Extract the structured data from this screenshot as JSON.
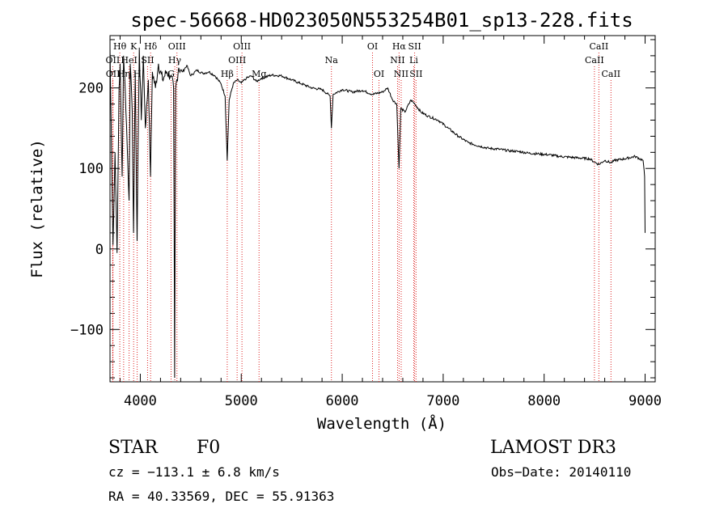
{
  "chart_data": {
    "type": "line",
    "title": "spec-56668-HD023050N553254B01_sp13-228.fits",
    "xlabel": "Wavelength (Å)",
    "ylabel": "Flux (relative)",
    "xlim": [
      3700,
      9100
    ],
    "ylim": [
      -165,
      265
    ],
    "x_ticks": [
      4000,
      5000,
      6000,
      7000,
      8000,
      9000
    ],
    "y_ticks": [
      -100,
      0,
      100,
      200
    ],
    "series": [
      {
        "name": "spectrum",
        "x": [
          3700,
          3730,
          3750,
          3770,
          3790,
          3800,
          3820,
          3835,
          3850,
          3870,
          3889,
          3900,
          3920,
          3933,
          3950,
          3968,
          3990,
          4010,
          4030,
          4050,
          4080,
          4101,
          4120,
          4150,
          4180,
          4220,
          4260,
          4300,
          4330,
          4340,
          4350,
          4380,
          4420,
          4460,
          4500,
          4560,
          4620,
          4680,
          4740,
          4800,
          4840,
          4861,
          4880,
          4920,
          4960,
          5000,
          5050,
          5100,
          5150,
          5200,
          5300,
          5400,
          5500,
          5600,
          5700,
          5800,
          5880,
          5893,
          5910,
          6000,
          6100,
          6200,
          6300,
          6400,
          6450,
          6500,
          6540,
          6563,
          6580,
          6620,
          6680,
          6720,
          6780,
          6850,
          6950,
          7050,
          7150,
          7250,
          7350,
          7450,
          7550,
          7650,
          7750,
          7850,
          7950,
          8050,
          8150,
          8250,
          8350,
          8450,
          8498,
          8542,
          8600,
          8662,
          8700,
          8800,
          8900,
          8980,
          8995,
          9000
        ],
        "y": [
          250,
          5,
          120,
          -5,
          200,
          230,
          90,
          240,
          200,
          130,
          60,
          230,
          170,
          20,
          220,
          10,
          250,
          160,
          240,
          150,
          210,
          90,
          220,
          200,
          230,
          210,
          220,
          215,
          200,
          -160,
          200,
          225,
          220,
          228,
          215,
          222,
          218,
          220,
          215,
          205,
          190,
          110,
          185,
          205,
          210,
          206,
          212,
          215,
          208,
          212,
          216,
          215,
          210,
          205,
          200,
          198,
          190,
          150,
          192,
          198,
          195,
          197,
          192,
          195,
          200,
          185,
          180,
          100,
          175,
          170,
          185,
          180,
          170,
          165,
          160,
          150,
          140,
          132,
          128,
          125,
          124,
          122,
          121,
          119,
          118,
          117,
          115,
          114,
          113,
          112,
          108,
          105,
          110,
          107,
          110,
          112,
          115,
          110,
          90,
          20
        ]
      }
    ],
    "line_markers": [
      {
        "label": "Hθ",
        "wl": 3797,
        "row": 1
      },
      {
        "label": "OII",
        "wl": 3727,
        "row": 2
      },
      {
        "label": "OII",
        "wl": 3729,
        "row": 3
      },
      {
        "label": "Hη",
        "wl": 3835,
        "row": 3
      },
      {
        "label": "HeI",
        "wl": 3889,
        "row": 2
      },
      {
        "label": "K",
        "wl": 3934,
        "row": 1
      },
      {
        "label": "H",
        "wl": 3969,
        "row": 3
      },
      {
        "label": "SII",
        "wl": 4072,
        "row": 2
      },
      {
        "label": "Hδ",
        "wl": 4102,
        "row": 1
      },
      {
        "label": "OIII",
        "wl": 4363,
        "row": 1
      },
      {
        "label": "Hγ",
        "wl": 4341,
        "row": 2
      },
      {
        "label": "G",
        "wl": 4305,
        "row": 3
      },
      {
        "label": "Hβ",
        "wl": 4861,
        "row": 3
      },
      {
        "label": "OIII",
        "wl": 4959,
        "row": 2
      },
      {
        "label": "OIII",
        "wl": 5007,
        "row": 1
      },
      {
        "label": "Mg",
        "wl": 5176,
        "row": 3
      },
      {
        "label": "Na",
        "wl": 5893,
        "row": 2
      },
      {
        "label": "OI",
        "wl": 6300,
        "row": 1
      },
      {
        "label": "OI",
        "wl": 6364,
        "row": 3
      },
      {
        "label": "Hα",
        "wl": 6563,
        "row": 1
      },
      {
        "label": "NII",
        "wl": 6548,
        "row": 2
      },
      {
        "label": "NII",
        "wl": 6584,
        "row": 3
      },
      {
        "label": "SII",
        "wl": 6717,
        "row": 1
      },
      {
        "label": "Li",
        "wl": 6708,
        "row": 2
      },
      {
        "label": "SII",
        "wl": 6731,
        "row": 3
      },
      {
        "label": "CaII",
        "wl": 8542,
        "row": 1
      },
      {
        "label": "CaII",
        "wl": 8498,
        "row": 2
      },
      {
        "label": "CaII",
        "wl": 8662,
        "row": 3
      }
    ]
  },
  "info": {
    "object_class": "STAR",
    "subclass": "F0",
    "survey": "LAMOST DR3",
    "redshift": "cz = −113.1 ± 6.8 km/s",
    "obs_date": "Obs−Date: 20140110",
    "coords": "RA =  40.33569, DEC =  55.91363"
  }
}
